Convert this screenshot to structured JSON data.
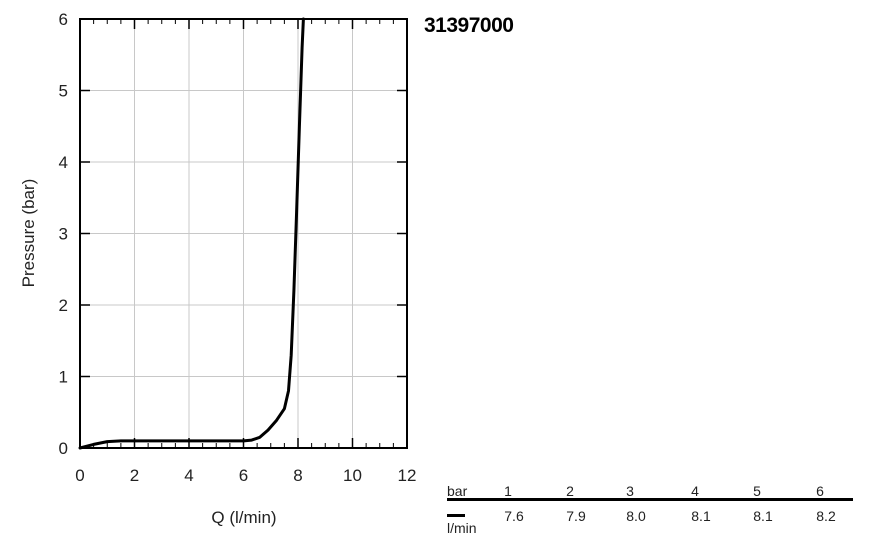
{
  "chart_data": {
    "type": "line",
    "title": "31397000",
    "xlabel": "Q (l/min)",
    "ylabel": "Pressure (bar)",
    "xlim": [
      0,
      12
    ],
    "ylim": [
      0,
      6
    ],
    "x_ticks": [
      0,
      2,
      4,
      6,
      8,
      10,
      12
    ],
    "y_ticks": [
      0,
      1,
      2,
      3,
      4,
      5,
      6
    ],
    "grid": true,
    "line_color": "#000000",
    "series": [
      {
        "x": [
          0,
          0.5,
          1.0,
          1.5,
          2.0,
          3.0,
          4.0,
          5.0,
          6.0,
          6.3,
          6.6,
          6.9,
          7.2,
          7.5,
          7.65,
          7.75,
          7.85,
          7.95,
          8.05,
          8.15,
          8.2
        ],
        "y": [
          0,
          0.05,
          0.09,
          0.1,
          0.1,
          0.1,
          0.1,
          0.1,
          0.1,
          0.11,
          0.15,
          0.25,
          0.38,
          0.55,
          0.8,
          1.3,
          2.2,
          3.3,
          4.5,
          5.6,
          6.0
        ]
      }
    ],
    "table": {
      "header_unit": "bar",
      "row_unit": "l/min",
      "pressures": [
        "1",
        "2",
        "3",
        "4",
        "5",
        "6"
      ],
      "flows": [
        "7.6",
        "7.9",
        "8.0",
        "8.1",
        "8.1",
        "8.2"
      ]
    }
  }
}
